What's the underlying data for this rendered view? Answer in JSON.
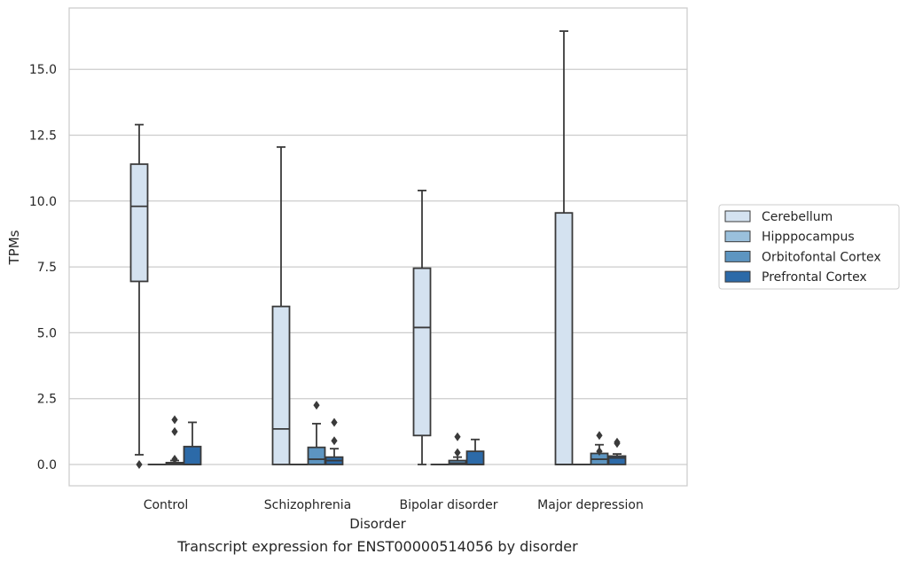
{
  "chart_data": {
    "type": "box",
    "xlabel": "Disorder",
    "ylabel": "TPMs",
    "caption": "Transcript expression for ENST00000514056 by disorder",
    "ylim": [
      -0.8,
      17.6
    ],
    "yticks": [
      0.0,
      2.5,
      5.0,
      7.5,
      10.0,
      12.5,
      15.0
    ],
    "ytick_labels": [
      "0.0",
      "2.5",
      "5.0",
      "7.5",
      "10.0",
      "12.5",
      "15.0"
    ],
    "grid": "horizontal",
    "legend_placement": "right",
    "categories": [
      "Control",
      "Schizophrenia",
      "Bipolar disorder",
      "Major depression"
    ],
    "series": [
      {
        "name": "Cerebellum",
        "color": "#d4e2f0",
        "boxes": [
          {
            "whisker_low": 0.37,
            "q1": 6.95,
            "median": 9.8,
            "q3": 11.4,
            "whisker_high": 12.9,
            "outliers": [
              0.0
            ]
          },
          {
            "whisker_low": 0.0,
            "q1": 0.0,
            "median": 1.35,
            "q3": 6.0,
            "whisker_high": 12.05,
            "outliers": []
          },
          {
            "whisker_low": 0.0,
            "q1": 1.1,
            "median": 5.2,
            "q3": 7.45,
            "whisker_high": 10.4,
            "outliers": []
          },
          {
            "whisker_low": 0.0,
            "q1": 0.0,
            "median": 0.0,
            "q3": 9.55,
            "whisker_high": 16.45,
            "outliers": []
          }
        ]
      },
      {
        "name": "Hipppocampus",
        "color": "#9ac0dc",
        "boxes": [
          {
            "whisker_low": 0.0,
            "q1": 0.0,
            "median": 0.0,
            "q3": 0.0,
            "whisker_high": 0.0,
            "outliers": []
          },
          {
            "whisker_low": 0.0,
            "q1": 0.0,
            "median": 0.0,
            "q3": 0.0,
            "whisker_high": 0.0,
            "outliers": []
          },
          {
            "whisker_low": 0.0,
            "q1": 0.0,
            "median": 0.0,
            "q3": 0.0,
            "whisker_high": 0.0,
            "outliers": []
          },
          {
            "whisker_low": 0.0,
            "q1": 0.0,
            "median": 0.0,
            "q3": 0.0,
            "whisker_high": 0.0,
            "outliers": []
          }
        ]
      },
      {
        "name": "Orbitofontal Cortex",
        "color": "#5d95c1",
        "boxes": [
          {
            "whisker_low": 0.0,
            "q1": 0.0,
            "median": 0.02,
            "q3": 0.07,
            "whisker_high": 0.15,
            "outliers": [
              0.2,
              1.25,
              1.7
            ]
          },
          {
            "whisker_low": 0.0,
            "q1": 0.0,
            "median": 0.2,
            "q3": 0.65,
            "whisker_high": 1.55,
            "outliers": [
              2.25
            ]
          },
          {
            "whisker_low": 0.0,
            "q1": 0.0,
            "median": 0.05,
            "q3": 0.15,
            "whisker_high": 0.28,
            "outliers": [
              0.45,
              1.05
            ]
          },
          {
            "whisker_low": 0.0,
            "q1": 0.0,
            "median": 0.2,
            "q3": 0.42,
            "whisker_high": 0.75,
            "outliers": [
              0.5,
              1.1
            ]
          }
        ]
      },
      {
        "name": "Prefrontal Cortex",
        "color": "#2c6aa8",
        "boxes": [
          {
            "whisker_low": 0.0,
            "q1": 0.0,
            "median": 0.0,
            "q3": 0.68,
            "whisker_high": 1.6,
            "outliers": []
          },
          {
            "whisker_low": 0.0,
            "q1": 0.0,
            "median": 0.15,
            "q3": 0.28,
            "whisker_high": 0.6,
            "outliers": [
              0.9,
              1.6
            ]
          },
          {
            "whisker_low": 0.0,
            "q1": 0.0,
            "median": 0.0,
            "q3": 0.5,
            "whisker_high": 0.95,
            "outliers": []
          },
          {
            "whisker_low": 0.0,
            "q1": 0.0,
            "median": 0.25,
            "q3": 0.32,
            "whisker_high": 0.4,
            "outliers": [
              0.8,
              0.85
            ]
          }
        ]
      }
    ]
  }
}
